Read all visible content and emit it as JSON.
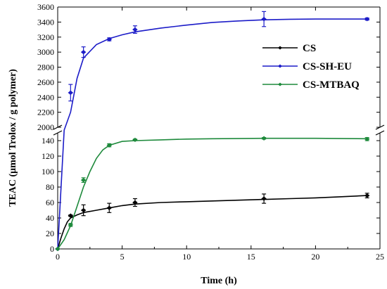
{
  "chart_data": {
    "type": "line",
    "xlabel": "Time (h)",
    "ylabel": "TEAC (μmol Trolox / g polymer)",
    "xlim": [
      0,
      25
    ],
    "x_ticks": [
      0,
      5,
      10,
      15,
      20,
      25
    ],
    "y_axis_break": true,
    "y_segments": [
      {
        "range": [
          0,
          150
        ],
        "ticks": [
          0,
          20,
          40,
          60,
          80,
          100,
          120,
          140
        ]
      },
      {
        "range": [
          2000,
          3600
        ],
        "ticks": [
          2000,
          2200,
          2400,
          2600,
          2800,
          3000,
          3200,
          3400,
          3600
        ]
      }
    ],
    "legend_position": "top-right",
    "series": [
      {
        "name": "CS",
        "color": "#000000",
        "points": [
          {
            "x": 0,
            "y": 0,
            "err": 0
          },
          {
            "x": 1,
            "y": 43,
            "err": 1
          },
          {
            "x": 2,
            "y": 50,
            "err": 7
          },
          {
            "x": 4,
            "y": 53,
            "err": 6
          },
          {
            "x": 6,
            "y": 60,
            "err": 5
          },
          {
            "x": 16,
            "y": 65,
            "err": 6
          },
          {
            "x": 24,
            "y": 69,
            "err": 3
          }
        ],
        "fit": [
          [
            0,
            0
          ],
          [
            0.25,
            14
          ],
          [
            0.5,
            26
          ],
          [
            0.75,
            35
          ],
          [
            1,
            40
          ],
          [
            1.5,
            44
          ],
          [
            2,
            47
          ],
          [
            3,
            50
          ],
          [
            4,
            53
          ],
          [
            5,
            56
          ],
          [
            6,
            58
          ],
          [
            8,
            60
          ],
          [
            10,
            61
          ],
          [
            12,
            62
          ],
          [
            14,
            63
          ],
          [
            16,
            64
          ],
          [
            18,
            65
          ],
          [
            20,
            66
          ],
          [
            22,
            67.5
          ],
          [
            24,
            69
          ]
        ]
      },
      {
        "name": "CS-SH-EU",
        "color": "#1c1cc8",
        "points": [
          {
            "x": 0,
            "y": 0,
            "err": 0
          },
          {
            "x": 1,
            "y": 2460,
            "err": 110
          },
          {
            "x": 2,
            "y": 3000,
            "err": 70
          },
          {
            "x": 4,
            "y": 3170,
            "err": 20
          },
          {
            "x": 6,
            "y": 3300,
            "err": 50
          },
          {
            "x": 16,
            "y": 3440,
            "err": 100
          },
          {
            "x": 24,
            "y": 3440,
            "err": 15
          }
        ],
        "fit": [
          [
            0,
            0
          ],
          [
            0.5,
            1400
          ],
          [
            1,
            2200
          ],
          [
            1.5,
            2650
          ],
          [
            2,
            2920
          ],
          [
            3,
            3100
          ],
          [
            4,
            3180
          ],
          [
            5,
            3230
          ],
          [
            6,
            3270
          ],
          [
            8,
            3320
          ],
          [
            10,
            3360
          ],
          [
            12,
            3395
          ],
          [
            14,
            3415
          ],
          [
            16,
            3430
          ],
          [
            18,
            3437
          ],
          [
            20,
            3440
          ],
          [
            22,
            3440
          ],
          [
            24,
            3440
          ]
        ]
      },
      {
        "name": "CS-MTBAQ",
        "color": "#1e8a3c",
        "points": [
          {
            "x": 0,
            "y": 0,
            "err": 0
          },
          {
            "x": 1,
            "y": 31,
            "err": 2
          },
          {
            "x": 2,
            "y": 89,
            "err": 3
          },
          {
            "x": 4,
            "y": 134,
            "err": 2
          },
          {
            "x": 6,
            "y": 141,
            "err": 1
          },
          {
            "x": 16,
            "y": 143,
            "err": 1
          },
          {
            "x": 24,
            "y": 142,
            "err": 2
          }
        ],
        "fit": [
          [
            0,
            0
          ],
          [
            0.5,
            12
          ],
          [
            1,
            30
          ],
          [
            1.5,
            55
          ],
          [
            2,
            80
          ],
          [
            2.5,
            100
          ],
          [
            3,
            117
          ],
          [
            3.5,
            128
          ],
          [
            4,
            134
          ],
          [
            5,
            139
          ],
          [
            6,
            140
          ],
          [
            8,
            141
          ],
          [
            10,
            142
          ],
          [
            12,
            142.5
          ],
          [
            16,
            143
          ],
          [
            20,
            143
          ],
          [
            24,
            142.5
          ]
        ]
      }
    ]
  }
}
